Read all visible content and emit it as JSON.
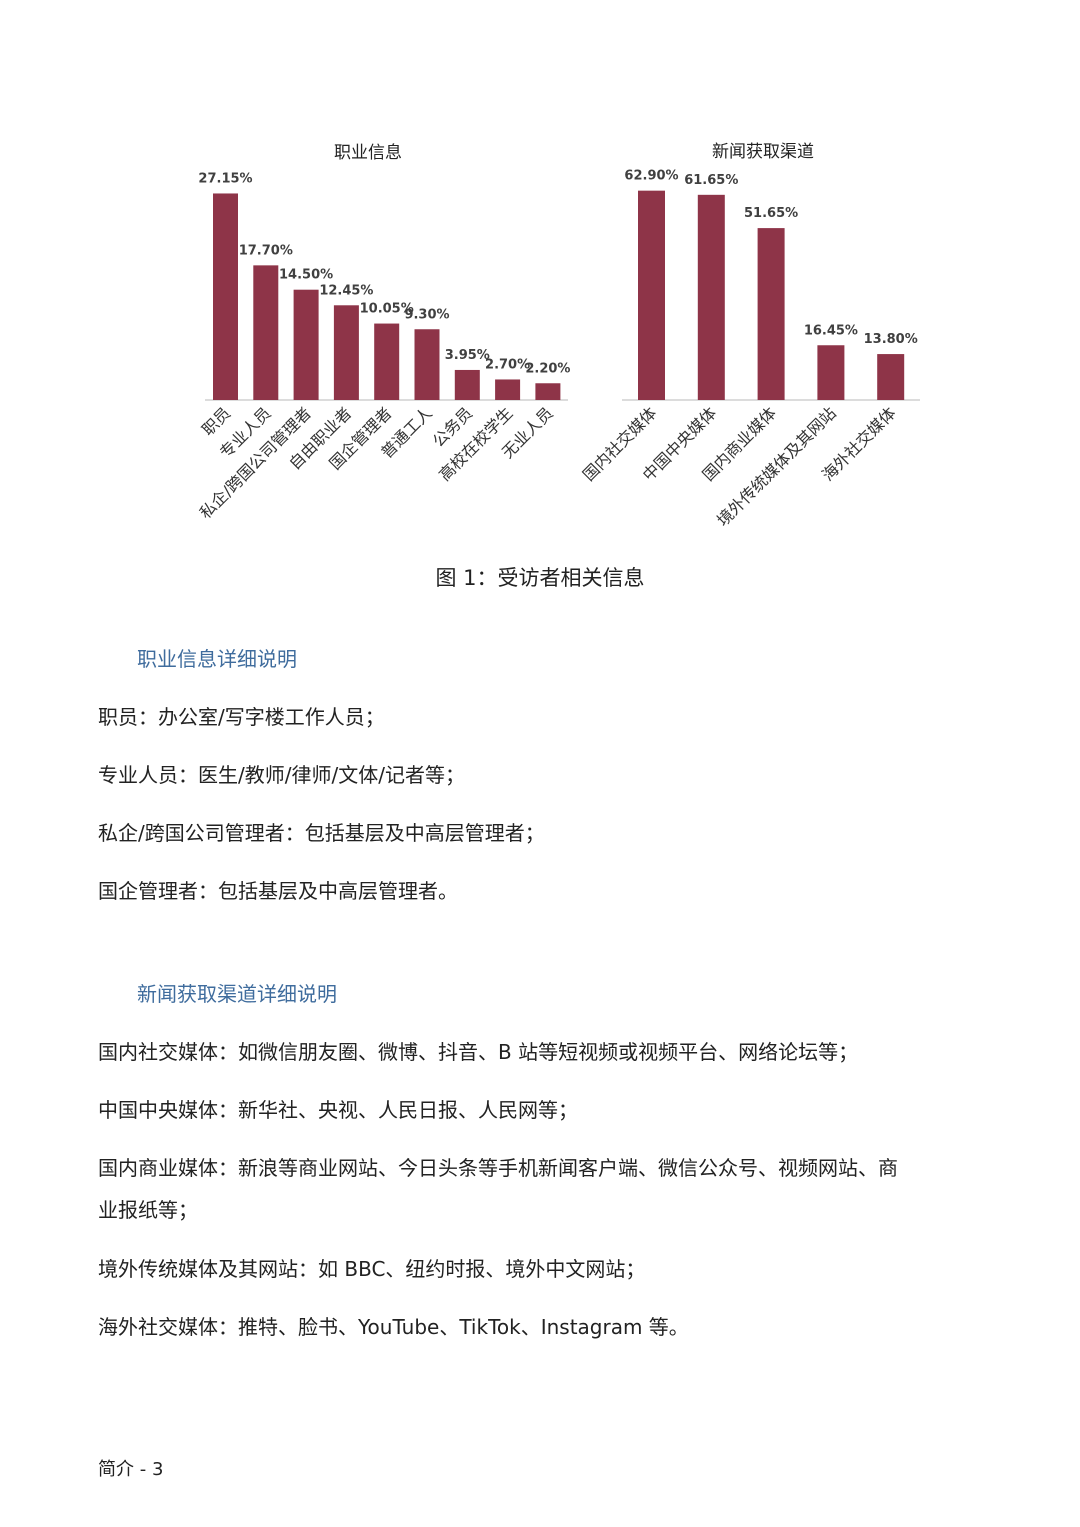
{
  "chart_data": [
    {
      "type": "bar",
      "title": "职业信息",
      "categories": [
        "职员",
        "专业人员",
        "私企/跨国公司管理者",
        "自由职业者",
        "国企管理者",
        "普通工人",
        "公务员",
        "高校在校学生",
        "无业人员"
      ],
      "values": [
        27.15,
        17.7,
        14.5,
        12.45,
        10.05,
        9.3,
        3.95,
        2.7,
        2.2
      ],
      "labels": [
        "27.15%",
        "17.70%",
        "14.50%",
        "12.45%",
        "10.05%",
        "9.30%",
        "3.95%",
        "2.70%",
        "2.20%"
      ],
      "ylim": [
        0,
        28
      ],
      "grid": false,
      "color": "#8e3448"
    },
    {
      "type": "bar",
      "title": "新闻获取渠道",
      "categories": [
        "国内社交媒体",
        "中国中央媒体",
        "国内商业媒体",
        "境外传统媒体及其网站",
        "海外社交媒体"
      ],
      "values": [
        62.9,
        61.65,
        51.65,
        16.45,
        13.8
      ],
      "labels": [
        "62.90%",
        "61.65%",
        "51.65%",
        "16.45%",
        "13.80%"
      ],
      "ylim": [
        0,
        64
      ],
      "grid": false,
      "color": "#8e3448"
    }
  ],
  "caption": "图 1：受访者相关信息",
  "section1": {
    "heading": "职业信息详细说明",
    "items": [
      {
        "term": "职员",
        "desc": "：办公室/写字楼工作人员；"
      },
      {
        "term": "专业人员",
        "desc": "：医生/教师/律师/文体/记者等；"
      },
      {
        "term": "私企/跨国公司管理者",
        "desc": "：包括基层及中高层管理者；"
      },
      {
        "term": "国企管理者",
        "desc": "：包括基层及中高层管理者。"
      }
    ]
  },
  "section2": {
    "heading": "新闻获取渠道详细说明",
    "items": [
      {
        "term": "国内社交媒体",
        "desc": "：如微信朋友圈、微博、抖音、B 站等短视频或视频平台、网络论坛等；"
      },
      {
        "term": "中国中央媒体",
        "desc": "：新华社、央视、人民日报、人民网等；"
      },
      {
        "term": "国内商业媒体",
        "desc": "：新浪等商业网站、今日头条等手机新闻客户端、微信公众号、视频网站、商",
        "cont": "业报纸等；"
      },
      {
        "term": "境外传统媒体及其网站",
        "desc": "：如 BBC、纽约时报、境外中文网站；"
      },
      {
        "term": "海外社交媒体",
        "desc": "：推特、脸书、YouTube、TikTok、Instagram 等。"
      }
    ]
  },
  "footer": "简介 - 3"
}
